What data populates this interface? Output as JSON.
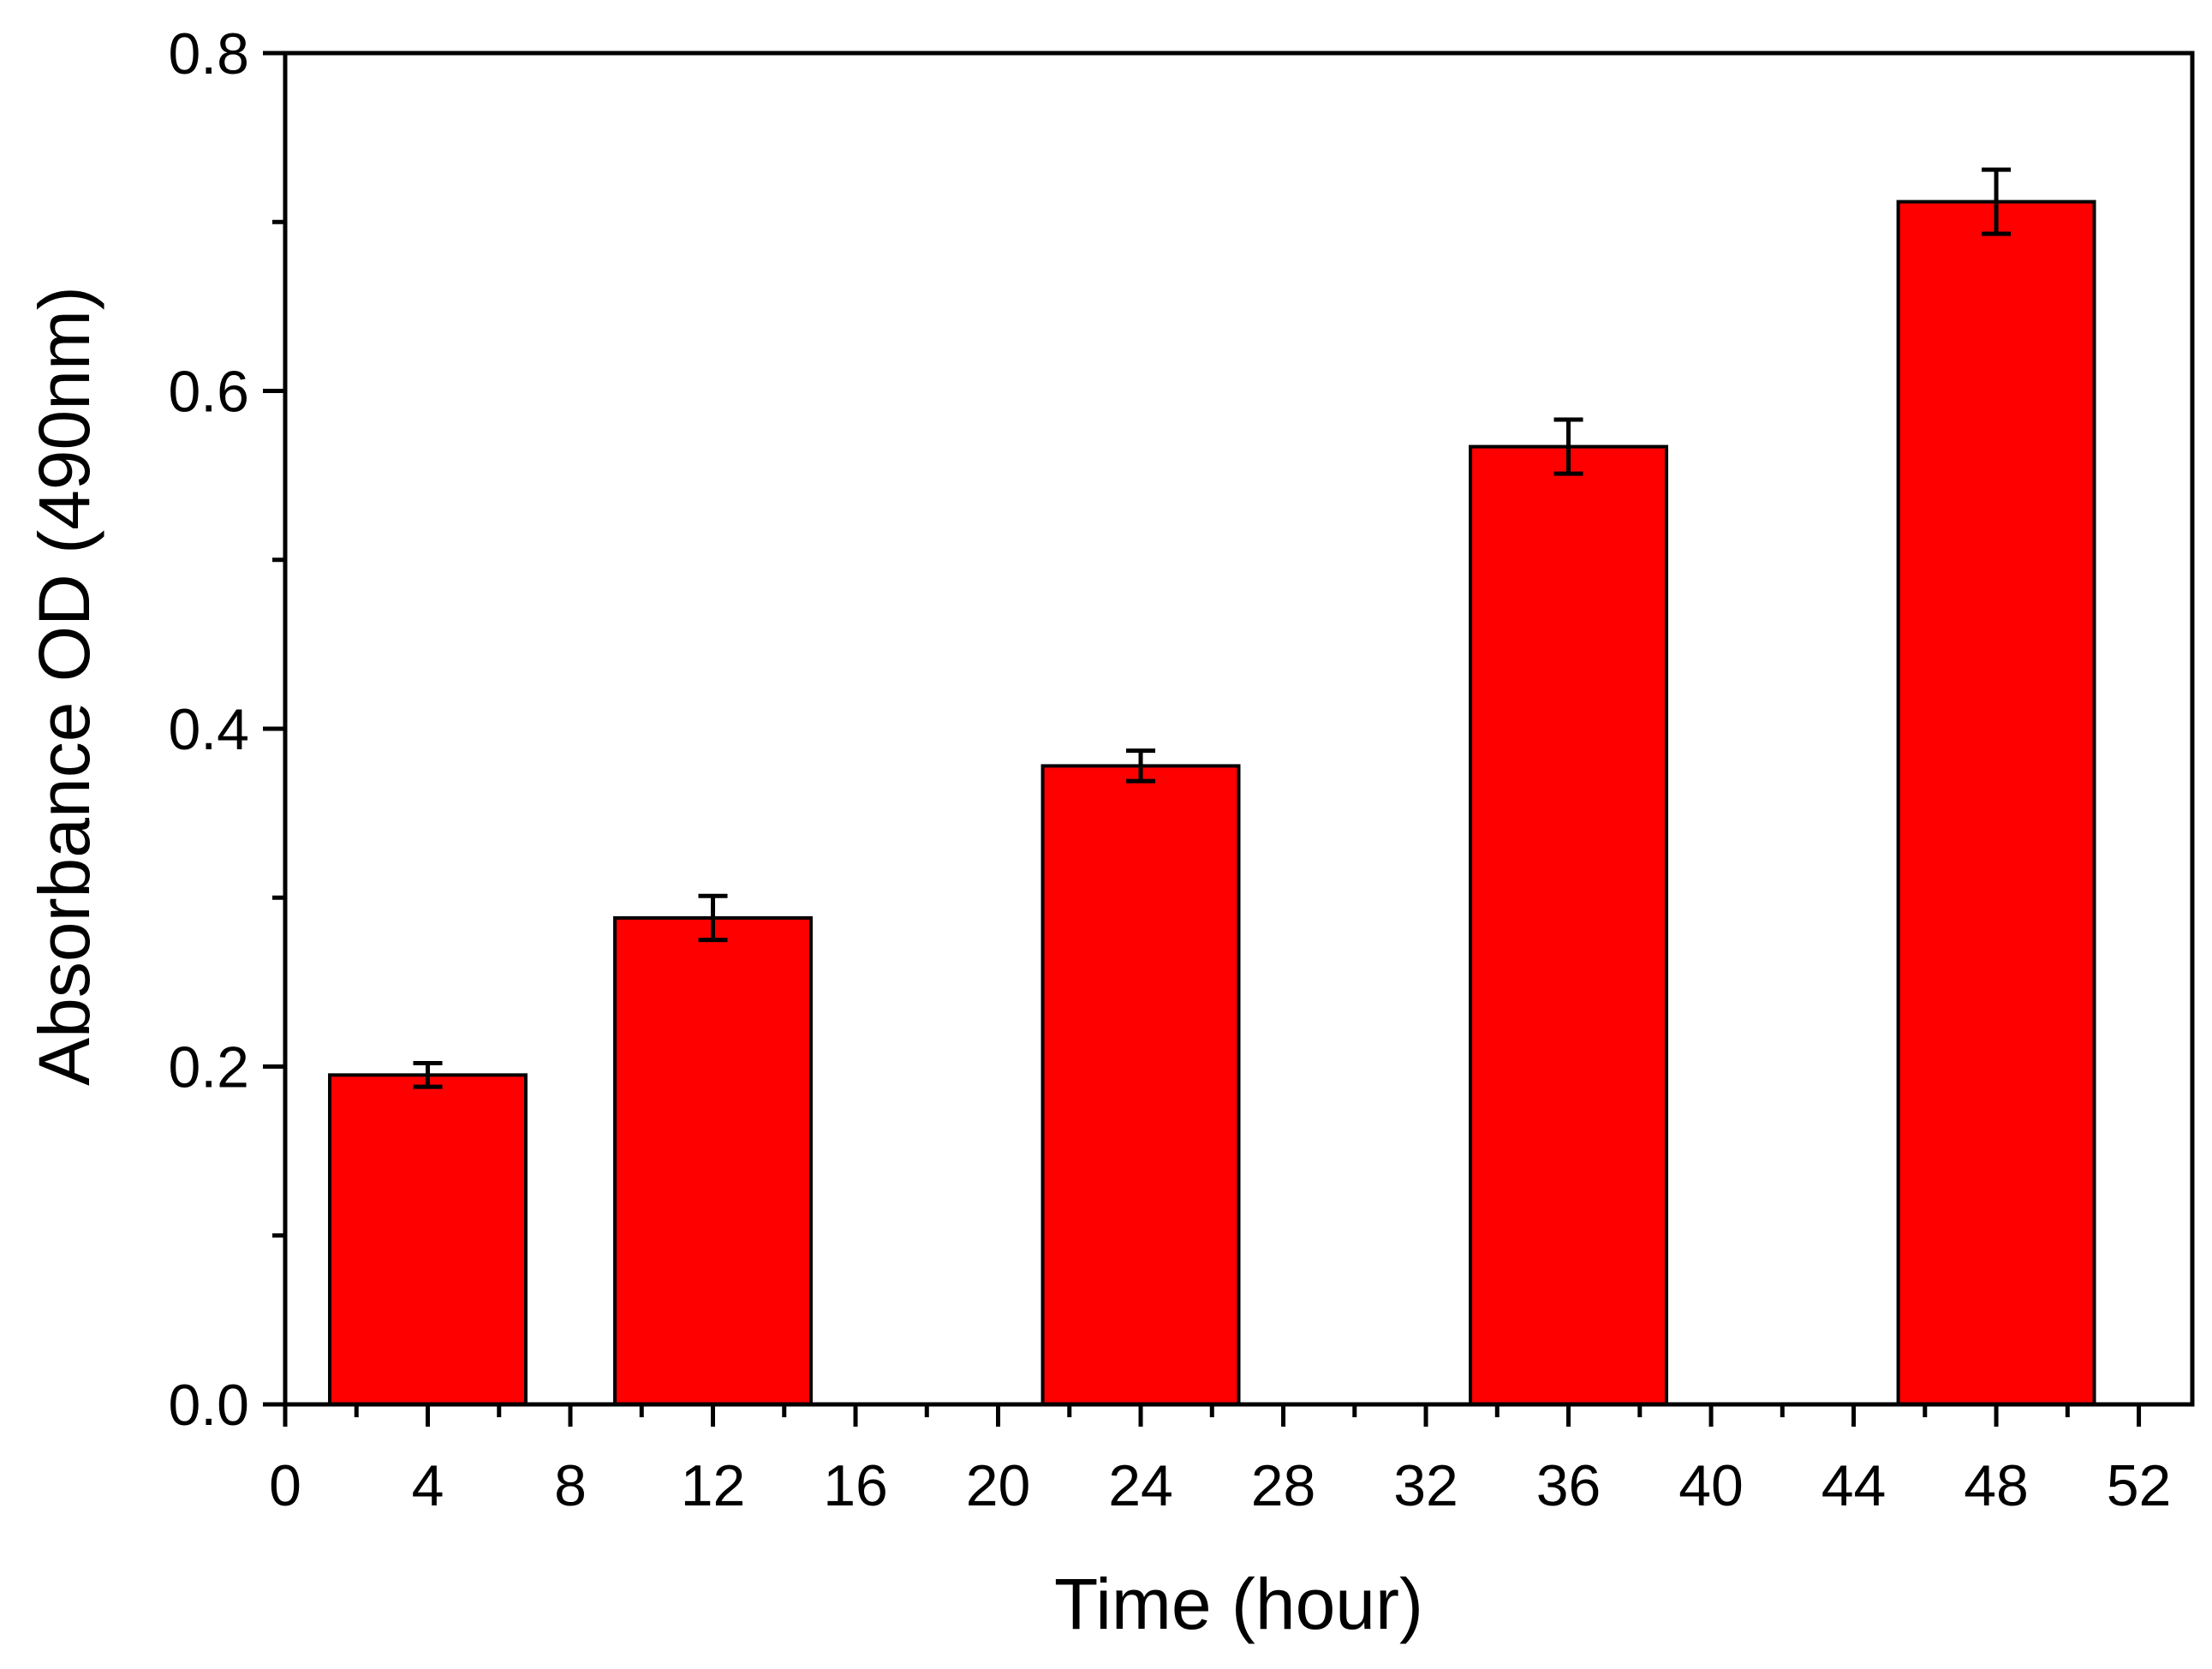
{
  "chart_data": {
    "type": "bar",
    "title": "",
    "xlabel": "Time (hour)",
    "ylabel": "Absorbance OD (490nm)",
    "x": [
      4,
      12,
      24,
      36,
      48
    ],
    "values": [
      0.195,
      0.288,
      0.378,
      0.567,
      0.712
    ],
    "errors": [
      0.007,
      0.013,
      0.009,
      0.016,
      0.019
    ],
    "bar_width": 5.5,
    "xlim": [
      0,
      53.5
    ],
    "ylim": [
      0,
      0.8
    ],
    "xticks": [
      0,
      4,
      8,
      12,
      16,
      20,
      24,
      28,
      32,
      36,
      40,
      44,
      48,
      52
    ],
    "xtick_labels": [
      "0",
      "4",
      "8",
      "12",
      "16",
      "20",
      "24",
      "28",
      "32",
      "36",
      "40",
      "44",
      "48",
      "52"
    ],
    "yticks": [
      0.0,
      0.2,
      0.4,
      0.6,
      0.8
    ],
    "ytick_labels": [
      "0.0",
      "0.2",
      "0.4",
      "0.6",
      "0.8"
    ],
    "grid": false,
    "legend": "none",
    "colors": {
      "bar_fill": "#ff0000",
      "bar_edge": "#000000",
      "axis": "#000000"
    }
  }
}
